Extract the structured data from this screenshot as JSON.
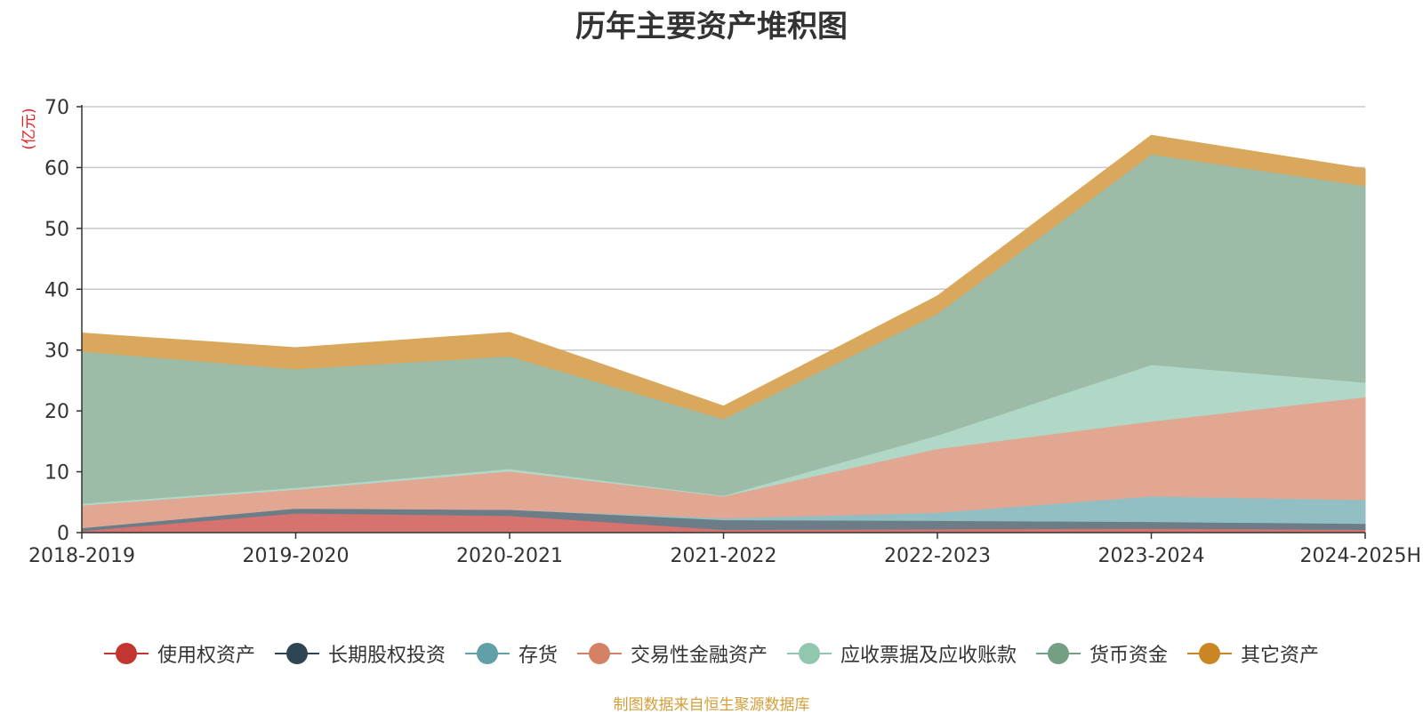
{
  "chart_data": {
    "type": "area",
    "stacked": true,
    "title": "历年主要资产堆积图",
    "unit": "(亿元)",
    "ylim": [
      0,
      70
    ],
    "yticks": [
      0,
      10,
      20,
      30,
      40,
      50,
      60,
      70
    ],
    "grid": true,
    "legend_position": "bottom",
    "categories": [
      "2018-2019",
      "2019-2020",
      "2020-2021",
      "2021-2022",
      "2022-2023",
      "2023-2024",
      "2024-2025H"
    ],
    "series": [
      {
        "name": "使用权资产",
        "color": "#c23531",
        "fill": "#d7736f",
        "values": [
          0.3,
          3.2,
          2.8,
          0.5,
          0.6,
          0.7,
          0.5
        ]
      },
      {
        "name": "长期股权投资",
        "color": "#2f4554",
        "fill": "#6d7d88",
        "values": [
          0.5,
          0.8,
          1.0,
          1.6,
          1.4,
          1.1,
          1.0
        ]
      },
      {
        "name": "存货",
        "color": "#61a0a8",
        "fill": "#91bfc4",
        "values": [
          0.0,
          0.0,
          0.0,
          0.3,
          1.3,
          4.2,
          3.9
        ]
      },
      {
        "name": "交易性金融资产",
        "color": "#d48265",
        "fill": "#e1a793",
        "values": [
          3.7,
          3.1,
          6.3,
          3.6,
          10.5,
          12.3,
          16.9
        ]
      },
      {
        "name": "应收票据及应收账款",
        "color": "#91c7ae",
        "fill": "#b1d8c6",
        "values": [
          0.3,
          0.3,
          0.4,
          0.1,
          2.2,
          9.3,
          2.4
        ]
      },
      {
        "name": "货币资金",
        "color": "#749f83",
        "fill": "#9dbca8",
        "values": [
          25.0,
          19.5,
          18.5,
          12.6,
          20.0,
          34.6,
          32.3
        ]
      },
      {
        "name": "其它资产",
        "color": "#ca8622",
        "fill": "#d9a85c",
        "values": [
          3.0,
          3.5,
          3.9,
          2.1,
          2.9,
          3.1,
          2.8
        ]
      }
    ]
  },
  "source_note": "制图数据来自恒生聚源数据库"
}
